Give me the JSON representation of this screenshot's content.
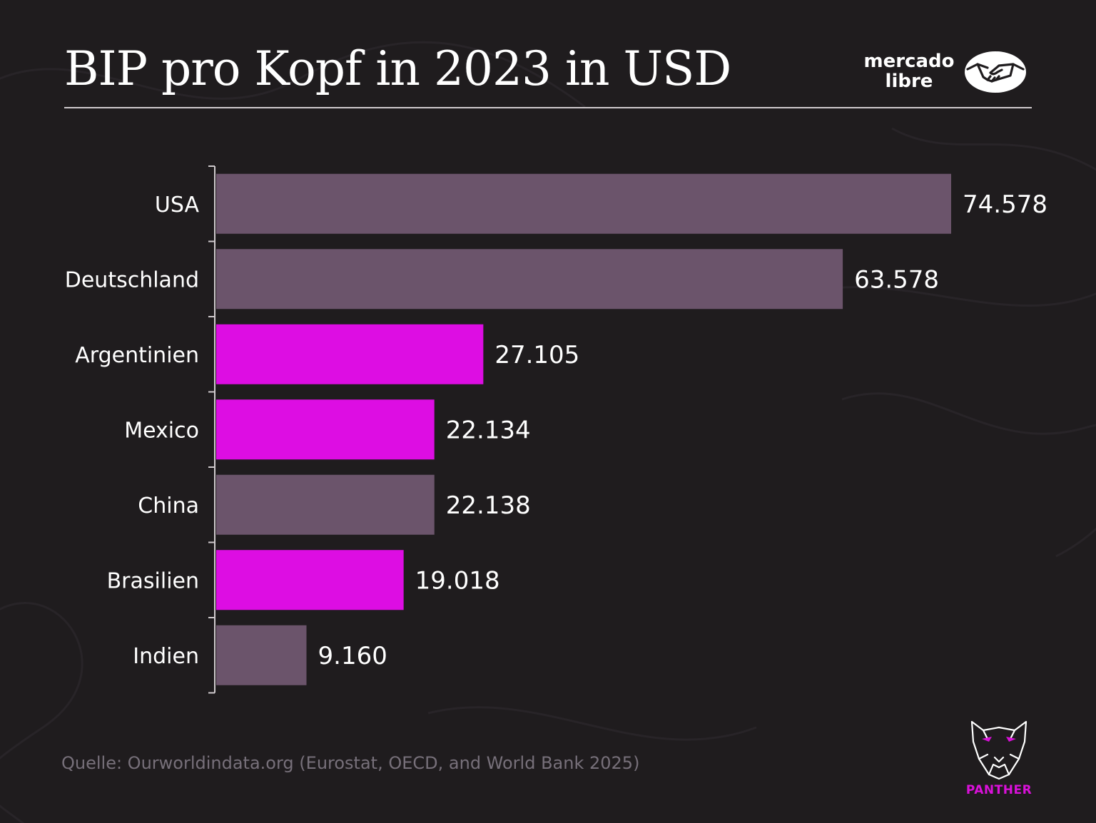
{
  "header": {
    "title": "BIP pro Kopf in 2023 in USD",
    "brand_line1": "mercado",
    "brand_line2": "libre"
  },
  "footer": {
    "source": "Quelle: Ourworldindata.org (Eurostat, OECD, and World Bank 2025)",
    "panther_label": "PANTHER"
  },
  "colors": {
    "background": "#1f1c1e",
    "bar_default": "#6b546b",
    "bar_highlight": "#dd0de3",
    "text": "#ffffff",
    "source_text": "#77707a"
  },
  "icons": [
    "handshake-icon",
    "panther-icon"
  ],
  "chart_data": {
    "type": "bar",
    "orientation": "horizontal",
    "categories": [
      "USA",
      "Deutschland",
      "Argentinien",
      "Mexico",
      "China",
      "Brasilien",
      "Indien"
    ],
    "values": [
      74578,
      63578,
      27105,
      22134,
      22138,
      19018,
      9160
    ],
    "value_labels": [
      "74.578",
      "63.578",
      "27.105",
      "22.134",
      "22.138",
      "19.018",
      "9.160"
    ],
    "highlighted": [
      false,
      false,
      true,
      true,
      false,
      true,
      false
    ],
    "title": "BIP pro Kopf in 2023 in USD",
    "xlabel": "",
    "ylabel": "",
    "grid": false,
    "legend": "none"
  }
}
